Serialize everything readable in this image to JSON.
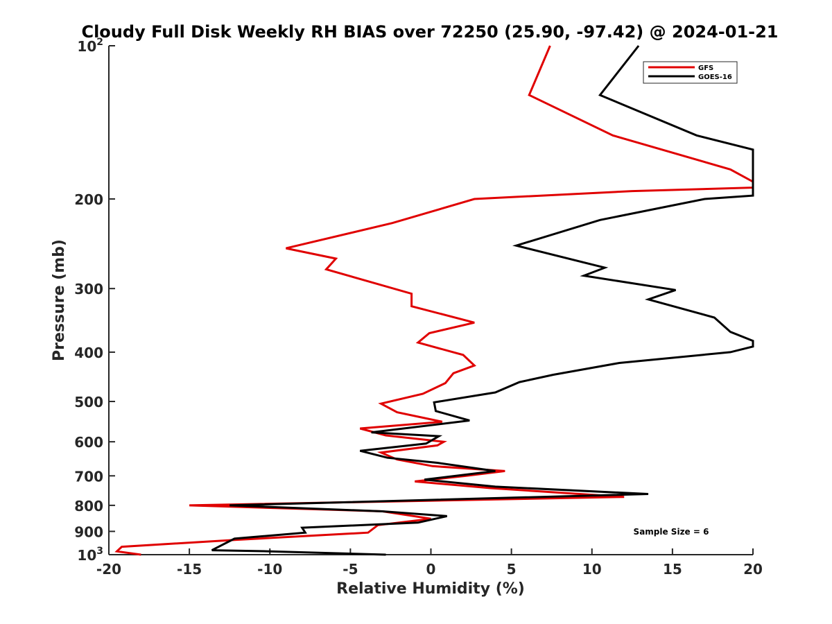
{
  "chart_data": {
    "type": "line",
    "title": "Cloudy Full Disk Weekly RH BIAS over 72250 (25.90, -97.42) @ 2024-01-21",
    "xlabel": "Relative Humidity (%)",
    "ylabel": "Pressure (mb)",
    "xlim": [
      -20,
      20
    ],
    "ylim": [
      1000,
      100
    ],
    "yscale": "log",
    "grid": false,
    "legend_position": "top-right",
    "x_ticks": [
      "-20",
      "-15",
      "-10",
      "-5",
      "0",
      "5",
      "10",
      "15",
      "20"
    ],
    "y_ticks": [
      {
        "value": 100,
        "label": "10",
        "sup": "2"
      },
      {
        "value": 200,
        "label": "200",
        "sup": ""
      },
      {
        "value": 300,
        "label": "300",
        "sup": ""
      },
      {
        "value": 400,
        "label": "400",
        "sup": ""
      },
      {
        "value": 500,
        "label": "500",
        "sup": ""
      },
      {
        "value": 600,
        "label": "600",
        "sup": ""
      },
      {
        "value": 700,
        "label": "700",
        "sup": ""
      },
      {
        "value": 800,
        "label": "800",
        "sup": ""
      },
      {
        "value": 900,
        "label": "900",
        "sup": ""
      },
      {
        "value": 1000,
        "label": "10",
        "sup": "3"
      }
    ],
    "series": [
      {
        "name": "GFS",
        "color": "#e00000",
        "points": [
          [
            7.4,
            100
          ],
          [
            6.1,
            125
          ],
          [
            11.3,
            150
          ],
          [
            18.6,
            175
          ],
          [
            20.0,
            185
          ],
          [
            20.0,
            190
          ],
          [
            12.5,
            193
          ],
          [
            2.7,
            200
          ],
          [
            -2.4,
            223
          ],
          [
            -9.0,
            250
          ],
          [
            -5.9,
            262
          ],
          [
            -6.5,
            275
          ],
          [
            -1.2,
            307
          ],
          [
            -1.2,
            325
          ],
          [
            2.7,
            350
          ],
          [
            -0.1,
            367
          ],
          [
            -0.8,
            383
          ],
          [
            2.0,
            405
          ],
          [
            2.7,
            425
          ],
          [
            1.4,
            440
          ],
          [
            0.9,
            460
          ],
          [
            -0.5,
            483
          ],
          [
            -3.1,
            505
          ],
          [
            -2.1,
            525
          ],
          [
            0.7,
            548
          ],
          [
            -4.4,
            565
          ],
          [
            -2.8,
            583
          ],
          [
            0.8,
            600
          ],
          [
            0.4,
            610
          ],
          [
            -3.1,
            630
          ],
          [
            -2.1,
            650
          ],
          [
            0.1,
            670
          ],
          [
            4.6,
            685
          ],
          [
            2.2,
            700
          ],
          [
            -1.0,
            718
          ],
          [
            3.7,
            740
          ],
          [
            12.0,
            770
          ],
          [
            -15.0,
            800
          ],
          [
            -3.0,
            822
          ],
          [
            0.0,
            850
          ],
          [
            -3.3,
            875
          ],
          [
            -3.9,
            905
          ],
          [
            -8.0,
            920
          ],
          [
            -12.1,
            935
          ],
          [
            -19.2,
            965
          ],
          [
            -19.5,
            985
          ],
          [
            -18.0,
            1000
          ]
        ]
      },
      {
        "name": "GOES-16",
        "color": "#000000",
        "points": [
          [
            12.9,
            100
          ],
          [
            10.5,
            125
          ],
          [
            16.5,
            150
          ],
          [
            20.0,
            160
          ],
          [
            20.0,
            180
          ],
          [
            20.0,
            197
          ],
          [
            17.0,
            200
          ],
          [
            10.5,
            220
          ],
          [
            5.3,
            247
          ],
          [
            10.8,
            273
          ],
          [
            9.5,
            283
          ],
          [
            15.2,
            302
          ],
          [
            13.5,
            315
          ],
          [
            17.6,
            342
          ],
          [
            18.6,
            365
          ],
          [
            20.0,
            380
          ],
          [
            20.0,
            390
          ],
          [
            18.6,
            400
          ],
          [
            11.7,
            420
          ],
          [
            7.6,
            443
          ],
          [
            5.5,
            458
          ],
          [
            4.0,
            480
          ],
          [
            0.2,
            502
          ],
          [
            0.3,
            522
          ],
          [
            2.4,
            545
          ],
          [
            -3.7,
            575
          ],
          [
            0.5,
            585
          ],
          [
            -0.3,
            605
          ],
          [
            -4.4,
            625
          ],
          [
            -2.7,
            645
          ],
          [
            0.4,
            660
          ],
          [
            4.0,
            685
          ],
          [
            -0.4,
            712
          ],
          [
            4.0,
            735
          ],
          [
            13.5,
            760
          ],
          [
            -12.5,
            800
          ],
          [
            -3.0,
            822
          ],
          [
            1.0,
            840
          ],
          [
            -0.8,
            865
          ],
          [
            -8.0,
            885
          ],
          [
            -7.8,
            905
          ],
          [
            -12.2,
            930
          ],
          [
            -13.6,
            980
          ],
          [
            -10.0,
            985
          ],
          [
            -2.8,
            1000
          ]
        ]
      }
    ],
    "annotations": [
      "Sample Size = 6"
    ]
  }
}
